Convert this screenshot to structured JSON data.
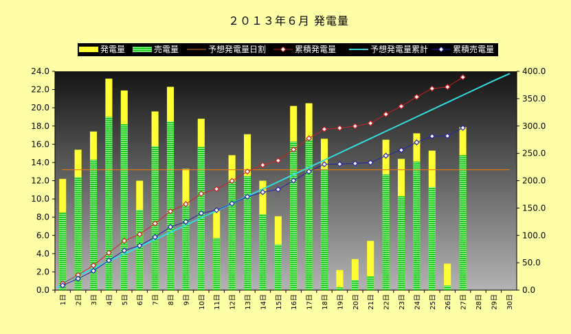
{
  "chart_data": {
    "type": "bar",
    "title": "２０１３年６月 発電量",
    "categories": [
      "1日",
      "2日",
      "3日",
      "4日",
      "5日",
      "6日",
      "7日",
      "8日",
      "9日",
      "10日",
      "11日",
      "12日",
      "13日",
      "14日",
      "15日",
      "16日",
      "17日",
      "18日",
      "19日",
      "20日",
      "21日",
      "22日",
      "23日",
      "24日",
      "25日",
      "26日",
      "27日",
      "28日",
      "29日",
      "30日"
    ],
    "y_left": {
      "min": 0,
      "max": 24,
      "step": 2,
      "ticks": [
        "0.0",
        "2.0",
        "4.0",
        "6.0",
        "8.0",
        "10.0",
        "12.0",
        "14.0",
        "16.0",
        "18.0",
        "20.0",
        "22.0",
        "24.0"
      ]
    },
    "y_right": {
      "min": 0,
      "max": 400,
      "step": 50,
      "ticks": [
        "0.0",
        "50.0",
        "100.0",
        "150.0",
        "200.0",
        "250.0",
        "300.0",
        "350.0",
        "400.0"
      ]
    },
    "series": [
      {
        "name": "発電量",
        "kind": "bar",
        "axis": "left",
        "color": "#ffff33",
        "values": [
          12.2,
          15.4,
          17.4,
          23.2,
          21.9,
          12.0,
          19.6,
          22.3,
          13.3,
          18.8,
          8.7,
          14.8,
          17.1,
          12.0,
          8.1,
          20.2,
          20.5,
          16.6,
          2.2,
          3.4,
          5.4,
          16.5,
          14.4,
          17.2,
          15.3,
          2.9,
          17.9,
          null,
          null,
          null
        ]
      },
      {
        "name": "売電量",
        "kind": "bar",
        "axis": "left",
        "color": "#33dd33",
        "values": [
          8.5,
          12.4,
          14.3,
          19.0,
          18.2,
          8.8,
          15.8,
          18.5,
          9.3,
          15.7,
          5.7,
          12.0,
          12.5,
          8.3,
          5.0,
          16.3,
          16.5,
          13.3,
          0.3,
          1.1,
          1.5,
          12.7,
          10.3,
          14.1,
          11.3,
          0.5,
          14.8,
          null,
          null,
          null
        ]
      },
      {
        "name": "予想発電量日割",
        "kind": "line",
        "axis": "left",
        "color": "#e07a10",
        "values": [
          13.2,
          13.2,
          13.2,
          13.2,
          13.2,
          13.2,
          13.2,
          13.2,
          13.2,
          13.2,
          13.2,
          13.2,
          13.2,
          13.2,
          13.2,
          13.2,
          13.2,
          13.2,
          13.2,
          13.2,
          13.2,
          13.2,
          13.2,
          13.2,
          13.2,
          13.2,
          13.2,
          13.2,
          13.2,
          13.2
        ]
      },
      {
        "name": "累積発電量",
        "kind": "line-marker",
        "axis": "right",
        "color": "#cc2222",
        "values": [
          12.2,
          27.6,
          45.0,
          68.2,
          90.1,
          102.1,
          121.7,
          144.0,
          157.3,
          176.1,
          184.8,
          199.6,
          216.7,
          228.7,
          236.8,
          257.0,
          277.5,
          294.1,
          296.3,
          299.7,
          305.1,
          321.6,
          336.0,
          353.2,
          368.5,
          371.4,
          389.3,
          null,
          null,
          null
        ]
      },
      {
        "name": "予想発電量累計",
        "kind": "line",
        "axis": "right",
        "color": "#33dddd",
        "values": [
          13.2,
          26.4,
          39.6,
          52.8,
          66.0,
          79.2,
          92.4,
          105.6,
          118.8,
          132.0,
          145.2,
          158.4,
          171.6,
          184.8,
          198.0,
          211.2,
          224.4,
          237.6,
          250.8,
          264.0,
          277.2,
          290.4,
          303.6,
          316.8,
          330.0,
          343.2,
          356.4,
          369.6,
          382.8,
          396.0
        ]
      },
      {
        "name": "累積売電量",
        "kind": "line-marker",
        "axis": "right",
        "color": "#2222aa",
        "values": [
          8.5,
          20.9,
          35.2,
          54.2,
          72.4,
          81.2,
          97.0,
          115.5,
          124.8,
          140.5,
          146.2,
          158.2,
          170.7,
          179.0,
          184.0,
          200.3,
          216.8,
          230.1,
          230.4,
          231.5,
          233.0,
          245.7,
          256.0,
          270.1,
          281.4,
          281.9,
          296.7,
          null,
          null,
          null
        ]
      }
    ],
    "legend_position": "top",
    "grid": false
  }
}
